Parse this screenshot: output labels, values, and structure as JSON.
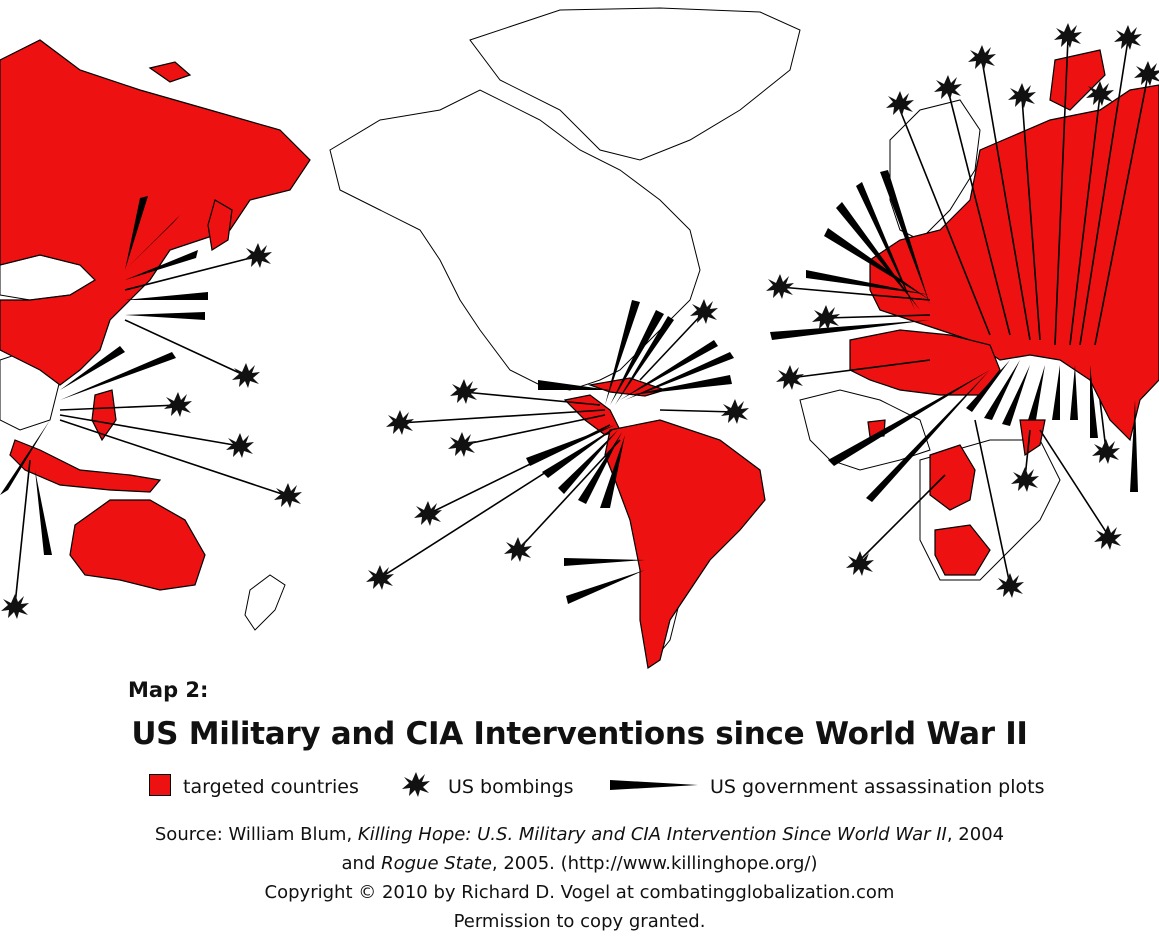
{
  "colors": {
    "targeted": "#ee1111",
    "bombing": "#111111",
    "plot": "#000000"
  },
  "map": {
    "label": "Map 2:",
    "title": "US Military and CIA Interventions since World War II",
    "legend": {
      "targeted": "targeted countries",
      "bombings": "US bombings",
      "plots": "US government assassination plots"
    },
    "icons": {
      "bombing": "explosion-icon",
      "plot": "wedge-icon"
    }
  },
  "credits": {
    "source_prefix": "Source:  William Blum, ",
    "book1": "Killing Hope: U.S. Military and CIA Intervention Since World War II",
    "book1_year": ", 2004",
    "and": "and ",
    "book2": "Rogue State",
    "book2_rest": ", 2005. (http://www.killinghope.org/)",
    "copyright": "Copyright  ©  2010 by Richard D. Vogel at combatingglobalization.com",
    "permission": "Permission to copy granted."
  }
}
